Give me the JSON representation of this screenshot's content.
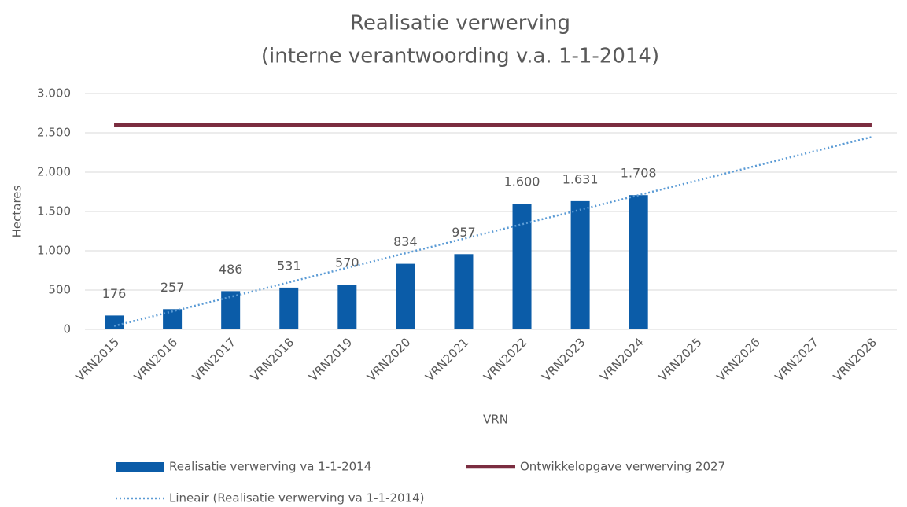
{
  "chart_data": {
    "type": "bar",
    "title": "Realisatie verwerving",
    "subtitle": "(interne verantwoording v.a. 1-1-2014)",
    "x_label": "VRN",
    "y_label": "Hectares",
    "categories": [
      "VRN2015",
      "VRN2016",
      "VRN2017",
      "VRN2018",
      "VRN2019",
      "VRN2020",
      "VRN2021",
      "VRN2022",
      "VRN2023",
      "VRN2024",
      "VRN2025",
      "VRN2026",
      "VRN2027",
      "VRN2028"
    ],
    "series": [
      {
        "name": "Realisatie verwerving va 1-1-2014",
        "type": "bar",
        "color": "#0b5ca8",
        "values": [
          176,
          257,
          486,
          531,
          570,
          834,
          957,
          1600,
          1631,
          1708,
          null,
          null,
          null,
          null
        ],
        "value_labels": [
          "176",
          "257",
          "486",
          "531",
          "570",
          "834",
          "957",
          "1.600",
          "1.631",
          "1.708",
          null,
          null,
          null,
          null
        ]
      },
      {
        "name": "Ontwikkelopgave verwerving 2027",
        "type": "line",
        "color": "#7b2d40",
        "values": [
          2600,
          2600,
          2600,
          2600,
          2600,
          2600,
          2600,
          2600,
          2600,
          2600,
          2600,
          2600,
          2600,
          2600
        ]
      },
      {
        "name": "Lineair (Realisatie verwerving va 1-1-2014)",
        "type": "line",
        "style": "dotted",
        "color": "#5b9bd5",
        "values": [
          43,
          228,
          413,
          598,
          783,
          968,
          1152,
          1337,
          1522,
          1707,
          1892,
          2077,
          2262,
          2447
        ]
      }
    ],
    "ylim": [
      0,
      3000
    ],
    "yticks": [
      0,
      500,
      {
        "value": 1000,
        "label": "1.000"
      },
      {
        "value": 1500,
        "label": "1.500"
      },
      {
        "value": 2000,
        "label": "2.000"
      },
      {
        "value": 2500,
        "label": "2.500"
      },
      {
        "value": 3000,
        "label": "3.000"
      }
    ],
    "grid": true,
    "legend": "bottom"
  }
}
